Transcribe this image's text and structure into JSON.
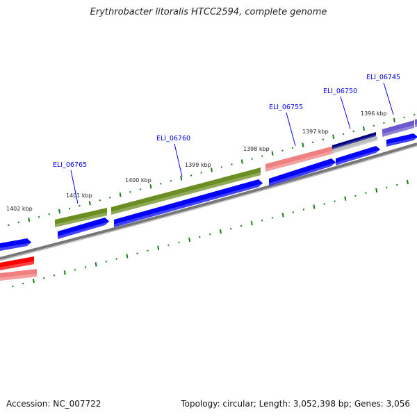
{
  "title": "Erythrobacter litoralis HTCC2594, complete genome",
  "accession": "Accession: NC_007722",
  "topology": "Topology: circular; Length: 3,052,398 bp; Genes: 3,056",
  "kbp_labels": [
    "1402 kbp",
    "1401 kbp",
    "1400 kbp",
    "1399 kbp",
    "1398 kbp",
    "1397 kbp",
    "1396 kbp"
  ],
  "gene_labels": [
    "ELI_06765",
    "ELI_06760",
    "ELI_06755",
    "ELI_06750",
    "ELI_06745"
  ],
  "colors": {
    "gene_label": "#0000ee",
    "tick": "#1a7a1a",
    "backbone": "#888888",
    "cds": "#0000ff",
    "green": "#6b8e23",
    "pink": "#f08080",
    "navy": "#000080",
    "purple": "#6a5acd",
    "red": "#ff0000"
  }
}
